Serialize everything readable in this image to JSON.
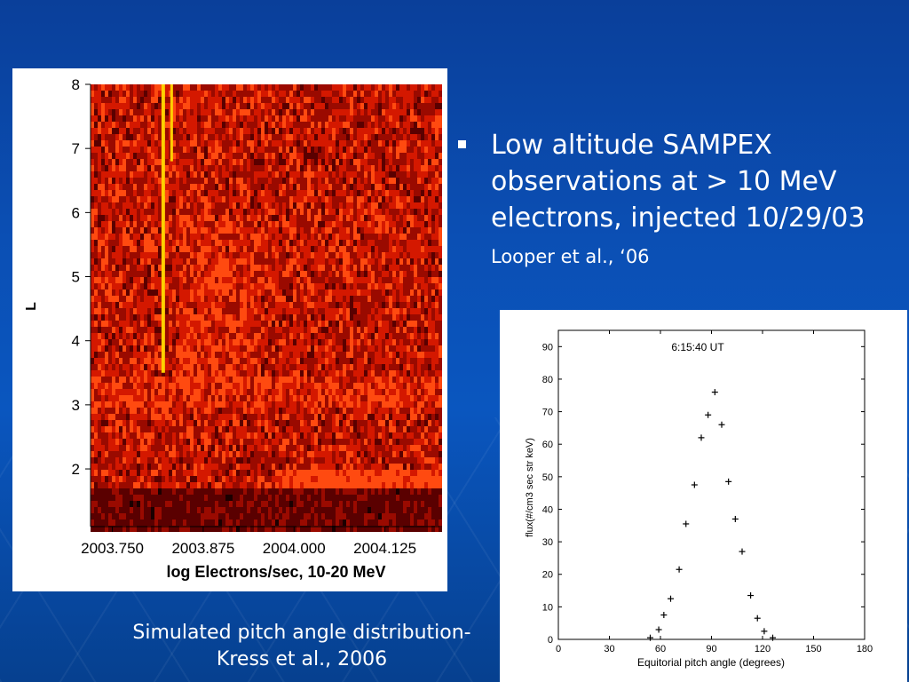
{
  "slide": {
    "bullet_main": "Low altitude SAMPEX observations at > 10 MeV electrons, injected 10/29/03",
    "bullet_citation": "Looper et al., ‘06",
    "caption_line1": "Simulated pitch angle distribution-",
    "caption_line2": "Kress et al., 2006"
  },
  "chart_data": [
    {
      "type": "heatmap",
      "title": "",
      "xlabel": "log Electrons/sec, 10-20 MeV",
      "ylabel": "L",
      "xlim": [
        2003.72,
        2004.2
      ],
      "ylim": [
        1.1,
        8
      ],
      "x_ticks": [
        "2003.750",
        "2003.875",
        "2004.000",
        "2004.125"
      ],
      "y_ticks": [
        "2",
        "3",
        "4",
        "5",
        "6",
        "7",
        "8"
      ],
      "colormap": [
        "#1a0000",
        "#5a0000",
        "#9a0a00",
        "#d41800",
        "#ff4a10",
        "#ffd000"
      ],
      "features": [
        {
          "x": 2003.82,
          "L": [
            3.5,
            8
          ],
          "level": "max"
        },
        {
          "x": 2004.0,
          "L": [
            1.8,
            2.05
          ],
          "level": "high"
        }
      ]
    },
    {
      "type": "scatter",
      "title": "6:15:40 UT",
      "xlabel": "Equitorial pitch angle (degrees)",
      "ylabel": "flux(#/cm3 sec str keV)",
      "xlim": [
        0,
        180
      ],
      "ylim": [
        0,
        95
      ],
      "x_ticks": [
        0,
        30,
        60,
        90,
        120,
        150,
        180
      ],
      "y_ticks": [
        0,
        10,
        20,
        30,
        40,
        50,
        60,
        70,
        80,
        90
      ],
      "marker": "+",
      "x": [
        54,
        59,
        62,
        66,
        71,
        75,
        80,
        84,
        88,
        92,
        96,
        100,
        104,
        108,
        113,
        117,
        121,
        126
      ],
      "y": [
        0.5,
        3,
        7.5,
        12.5,
        21.5,
        35.5,
        47.5,
        62,
        69,
        76,
        66,
        48.5,
        37,
        27,
        13.5,
        6.5,
        2.5,
        0.5
      ]
    }
  ]
}
